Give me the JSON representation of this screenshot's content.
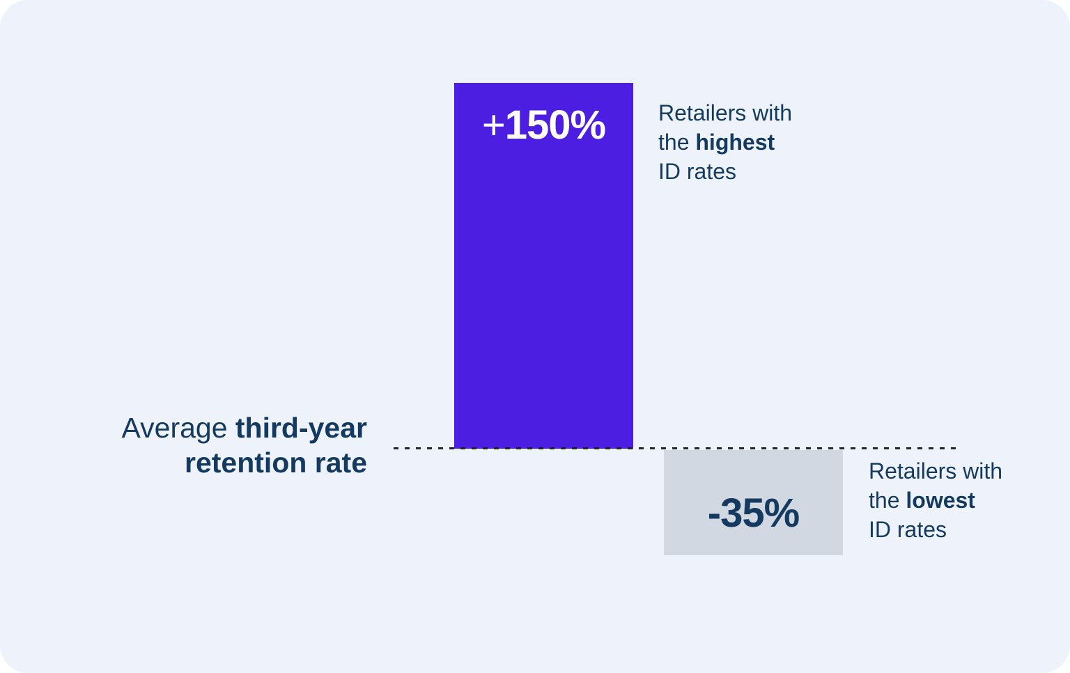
{
  "chart_data": {
    "type": "bar",
    "categories": [
      "Retailers with the highest ID rates",
      "Retailers with the lowest ID rates"
    ],
    "values": [
      150,
      -35
    ],
    "value_labels": [
      "+150%",
      "-35%"
    ],
    "unit": "%",
    "baseline": {
      "value": 0,
      "label": "Average third-year retention rate"
    },
    "colors": {
      "highest_bar": "#4B1EE2",
      "lowest_bar": "#D2D8E1",
      "text": "#143A5F",
      "value_on_bar": "#FFFFFF",
      "dash_line": "#20242E",
      "background": "#EDF2FB"
    },
    "grid": false,
    "legend_position": "none",
    "orientation": "vertical",
    "baseline_style": "dashed"
  },
  "bar_high": {
    "sign": "+",
    "number": "150%"
  },
  "bar_low": {
    "value": "-35%"
  },
  "label_high": {
    "line1": "Retailers with",
    "line2_pre": "the ",
    "line2_bold": "highest",
    "line3": "ID rates"
  },
  "label_low": {
    "line1": "Retailers with",
    "line2_pre": "the ",
    "line2_bold": "lowest",
    "line3": "ID rates"
  },
  "axis_label": {
    "line1_regular": "Average ",
    "line1_bold": "third-year",
    "line2_bold": "retention rate"
  }
}
